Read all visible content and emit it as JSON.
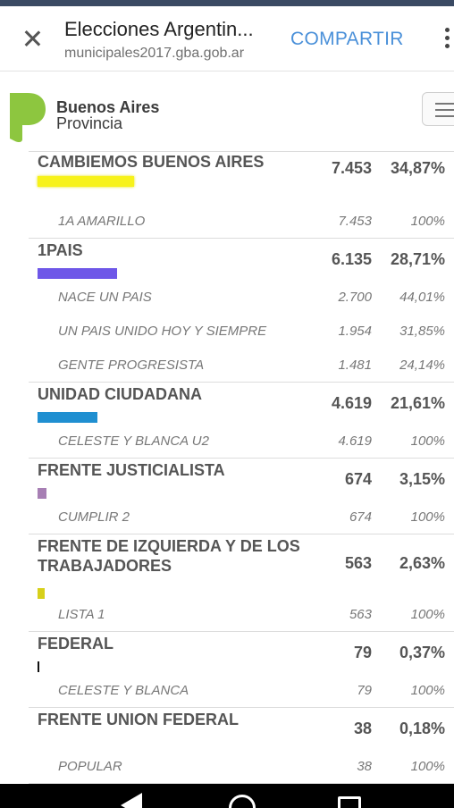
{
  "topbar": {
    "title": "Elecciones Argentin...",
    "url": "municipales2017.gba.gob.ar",
    "share_label": "COMPARTIR"
  },
  "brand": {
    "line1": "Buenos Aires",
    "line2": "Provincia",
    "logo_color": "#8dc63f"
  },
  "parties": [
    {
      "name": "CAMBIEMOS BUENOS AIRES",
      "votes": "7.453",
      "percent": "34,87%",
      "color": "#f7f21a",
      "lists": [
        {
          "name": "1A AMARILLO",
          "votes": "7.453",
          "percent": "100%"
        }
      ]
    },
    {
      "name": "1PAIS",
      "votes": "6.135",
      "percent": "28,71%",
      "color": "#6e57e8",
      "lists": [
        {
          "name": "NACE UN PAIS",
          "votes": "2.700",
          "percent": "44,01%"
        },
        {
          "name": "UN PAIS UNIDO HOY Y SIEMPRE",
          "votes": "1.954",
          "percent": "31,85%"
        },
        {
          "name": "GENTE PROGRESISTA",
          "votes": "1.481",
          "percent": "24,14%"
        }
      ]
    },
    {
      "name": "UNIDAD CIUDADANA",
      "votes": "4.619",
      "percent": "21,61%",
      "color": "#1f8fd1",
      "lists": [
        {
          "name": "CELESTE Y BLANCA U2",
          "votes": "4.619",
          "percent": "100%"
        }
      ]
    },
    {
      "name": "FRENTE JUSTICIALISTA",
      "votes": "674",
      "percent": "3,15%",
      "color": "#a77fb4",
      "lists": [
        {
          "name": "CUMPLIR 2",
          "votes": "674",
          "percent": "100%"
        }
      ]
    },
    {
      "name": "FRENTE DE IZQUIERDA Y DE LOS TRABAJADORES",
      "votes": "563",
      "percent": "2,63%",
      "color": "#d7d01a",
      "lists": [
        {
          "name": "LISTA 1",
          "votes": "563",
          "percent": "100%"
        }
      ]
    },
    {
      "name": "FEDERAL",
      "votes": "79",
      "percent": "0,37%",
      "color": "#111111",
      "lists": [
        {
          "name": "CELESTE Y BLANCA",
          "votes": "79",
          "percent": "100%"
        }
      ]
    },
    {
      "name": "FRENTE UNION FEDERAL",
      "votes": "38",
      "percent": "0,18%",
      "color": "#ffffff",
      "lists": [
        {
          "name": "POPULAR",
          "votes": "38",
          "percent": "100%"
        }
      ]
    }
  ],
  "icons": {
    "close": "close-icon",
    "more": "more-vert-icon",
    "menu": "hamburger-icon",
    "back": "back-triangle-icon",
    "home": "home-circle-icon",
    "recent": "recent-apps-icon"
  }
}
